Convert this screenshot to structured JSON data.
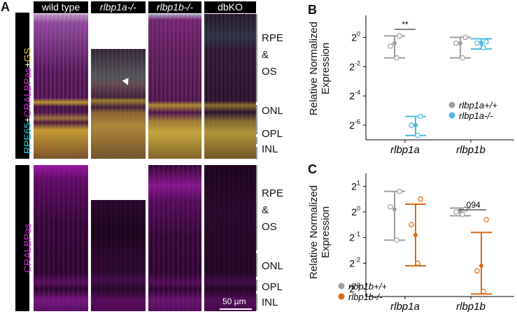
{
  "panel_a": {
    "letter": "A",
    "columns": [
      "wild type",
      "rlbp1a-/-",
      "rlbp1b-/-",
      "dbKO"
    ],
    "top_label": {
      "parts": [
        {
          "text": "RPE65",
          "color": "#2ec9e6"
        },
        {
          "text": "+",
          "color": "#ffffff"
        },
        {
          "text": "CRALBPas",
          "color": "#d12ad6"
        },
        {
          "text": "+",
          "color": "#ffffff"
        },
        {
          "text": "GS",
          "color": "#e2c23a"
        }
      ]
    },
    "bottom_label": {
      "text": "CRALBPas",
      "color": "#d12ad6"
    },
    "layers": [
      "RPE",
      "&",
      "OS",
      "ONL",
      "OPL",
      "INL"
    ],
    "scale_bar": "50 µm"
  },
  "panel_b": {
    "letter": "B",
    "ylabel_line1": "Relative Normalized",
    "ylabel_line2": "Expression",
    "yticks": [
      {
        "base": "2",
        "exp": "0"
      },
      {
        "base": "2",
        "exp": "-2"
      },
      {
        "base": "2",
        "exp": "-4"
      },
      {
        "base": "2",
        "exp": "-6"
      }
    ],
    "xticks": [
      "rlbp1a",
      "rlbp1b"
    ],
    "significance": "**",
    "legend": [
      {
        "label": "rlbp1a+/+",
        "color": "#9e9e9e"
      },
      {
        "label": "rlbp1a-/-",
        "color": "#4bb8e2"
      }
    ]
  },
  "panel_c": {
    "letter": "C",
    "ylabel_line1": "Relative Normalized",
    "ylabel_line2": "Expression",
    "yticks": [
      {
        "base": "2",
        "exp": "1"
      },
      {
        "base": "2",
        "exp": "0"
      },
      {
        "base": "2",
        "exp": "-1"
      },
      {
        "base": "2",
        "exp": "-2"
      },
      {
        "base": "2",
        "exp": "-3"
      }
    ],
    "xticks": [
      "rlbp1a",
      "rlbp1b"
    ],
    "significance": ".094",
    "legend": [
      {
        "label": "rlbp1b+/+",
        "color": "#9e9e9e"
      },
      {
        "label": "rlbp1b-/-",
        "color": "#d96b14"
      }
    ]
  },
  "chart_data": [
    {
      "type": "scatter",
      "title": "",
      "xlabel": "",
      "ylabel": "Relative Normalized Expression",
      "y_scale": "log2",
      "ylim_log2": [
        -7,
        1.5
      ],
      "categories": [
        "rlbp1a",
        "rlbp1b"
      ],
      "series": [
        {
          "name": "rlbp1a+/+",
          "points": [
            {
              "x": "rlbp1a",
              "mean": -0.4,
              "hi": 0.1,
              "lo": -1.4,
              "reps": [
                0.1,
                -0.6,
                -1.4
              ]
            },
            {
              "x": "rlbp1b",
              "mean": -0.4,
              "hi": 0.0,
              "lo": -1.4,
              "reps": [
                0.0,
                -0.4,
                -1.4
              ]
            }
          ]
        },
        {
          "name": "rlbp1a-/-",
          "points": [
            {
              "x": "rlbp1a",
              "mean": -6.0,
              "hi": -5.4,
              "lo": -6.7,
              "reps": [
                -5.4,
                -6.0,
                -6.7
              ]
            },
            {
              "x": "rlbp1b",
              "mean": -0.4,
              "hi": -0.1,
              "lo": -0.8,
              "reps": [
                -0.3,
                -0.4,
                -0.7
              ]
            }
          ]
        }
      ]
    },
    {
      "type": "scatter",
      "title": "",
      "xlabel": "",
      "ylabel": "Relative Normalized Expression",
      "y_scale": "log2",
      "ylim_log2": [
        -3.3,
        1.5
      ],
      "categories": [
        "rlbp1a",
        "rlbp1b"
      ],
      "series": [
        {
          "name": "rlbp1b+/+",
          "points": [
            {
              "x": "rlbp1a",
              "mean": 0.1,
              "hi": 0.8,
              "lo": -1.1,
              "reps": [
                0.8,
                0.2,
                -1.1
              ]
            },
            {
              "x": "rlbp1b",
              "mean": 0.0,
              "hi": 0.15,
              "lo": -0.15,
              "reps": [
                0.1,
                0.0,
                -0.1
              ]
            }
          ]
        },
        {
          "name": "rlbp1b-/-",
          "points": [
            {
              "x": "rlbp1a",
              "mean": -0.9,
              "hi": 0.3,
              "lo": -2.1,
              "reps": [
                0.5,
                -0.5,
                -2.0
              ]
            },
            {
              "x": "rlbp1b",
              "mean": -2.1,
              "hi": -0.8,
              "lo": -3.2,
              "reps": [
                -0.3,
                -2.3,
                -3.1
              ]
            }
          ]
        }
      ]
    }
  ]
}
